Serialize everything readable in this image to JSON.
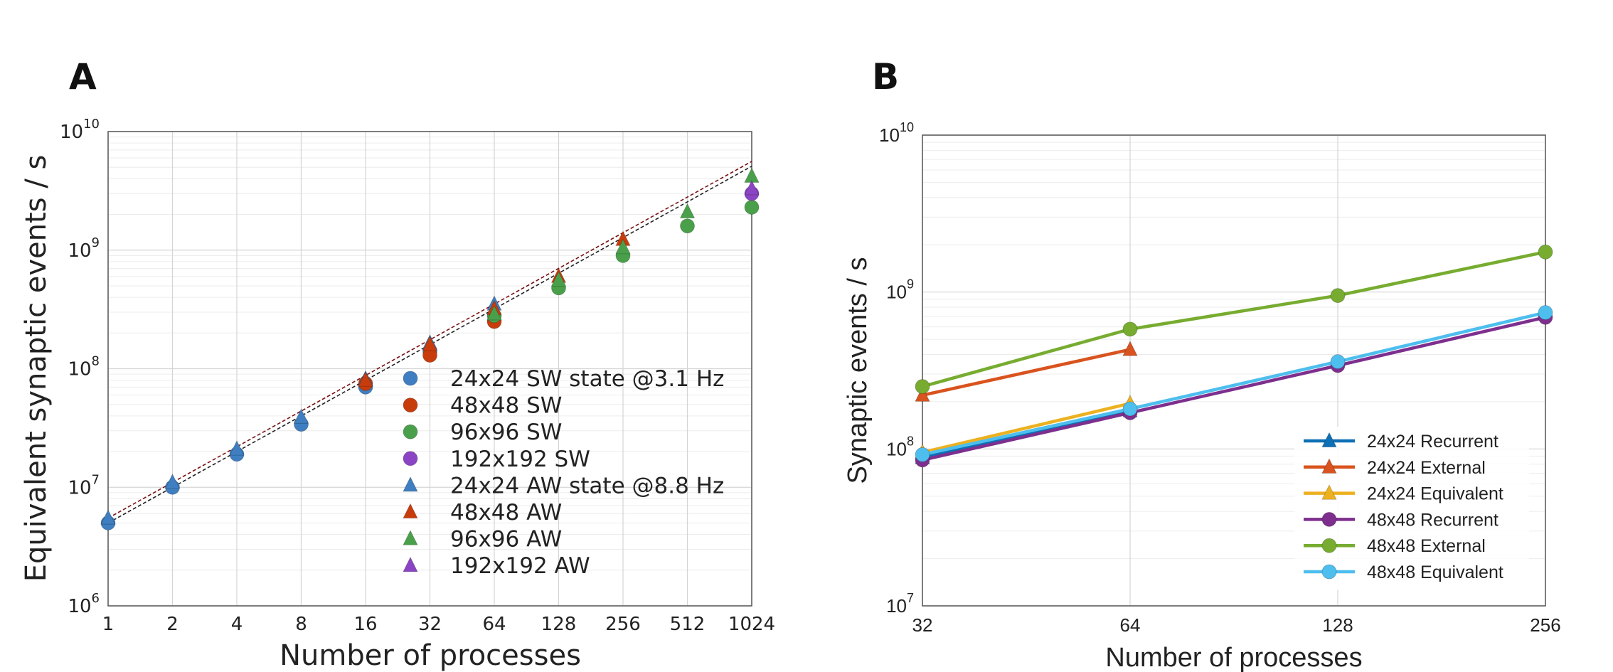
{
  "chart_data": [
    {
      "panel": "A",
      "type": "scatter",
      "xscale": "log2",
      "yscale": "log",
      "xlabel": "Number of processes",
      "ylabel": "Equivalent synaptic events / s",
      "xlim": [
        1,
        1024
      ],
      "ylim": [
        1000000,
        10000000000
      ],
      "xticks": [
        "1",
        "2",
        "4",
        "8",
        "16",
        "32",
        "64",
        "128",
        "256",
        "512",
        "1024"
      ],
      "ytick_base": "10",
      "ytick_exponents": [
        "6",
        "7",
        "8",
        "9",
        "10"
      ],
      "grid": true,
      "legend_position": "inside, lower-right of center",
      "series": [
        {
          "name": "24x24 SW state @3.1 Hz",
          "marker": "circle",
          "color": "#3f7fc1",
          "x": [
            1,
            2,
            4,
            8,
            16,
            32
          ],
          "y": [
            5000000,
            10000000,
            19000000,
            34000000,
            70000000,
            140000000
          ]
        },
        {
          "name": "48x48 SW",
          "marker": "circle",
          "color": "#c83c0c",
          "x": [
            16,
            32,
            64
          ],
          "y": [
            75000000,
            130000000,
            250000000
          ]
        },
        {
          "name": "96x96 SW",
          "marker": "circle",
          "color": "#4aa04a",
          "x": [
            64,
            128,
            256,
            512,
            1024
          ],
          "y": [
            280000000,
            480000000,
            900000000,
            1600000000,
            2300000000
          ]
        },
        {
          "name": "192x192 SW",
          "marker": "circle",
          "color": "#8b45c4",
          "x": [
            1024
          ],
          "y": [
            3000000000
          ]
        },
        {
          "name": "24x24 AW state @8.8 Hz",
          "marker": "triangle",
          "color": "#3f7fc1",
          "x": [
            1,
            2,
            4,
            8,
            16,
            32,
            64
          ],
          "y": [
            5500000,
            11000000,
            21000000,
            39000000,
            82000000,
            165000000,
            350000000
          ]
        },
        {
          "name": "48x48 AW",
          "marker": "triangle",
          "color": "#c83c0c",
          "x": [
            16,
            32,
            64,
            128,
            256
          ],
          "y": [
            80000000,
            160000000,
            320000000,
            600000000,
            1230000000
          ]
        },
        {
          "name": "96x96 AW",
          "marker": "triangle",
          "color": "#4aa04a",
          "x": [
            64,
            128,
            256,
            512,
            1024
          ],
          "y": [
            290000000,
            560000000,
            1050000000,
            2100000000,
            4200000000
          ]
        },
        {
          "name": "192x192 AW",
          "marker": "triangle",
          "color": "#8b45c4",
          "x": [
            1024
          ],
          "y": [
            3300000000
          ]
        }
      ],
      "reference_lines": [
        {
          "color": "#7a1010",
          "x": [
            1,
            1024
          ],
          "y": [
            5500000,
            5600000000
          ]
        },
        {
          "color": "#222222",
          "x": [
            1,
            1024
          ],
          "y": [
            5000000,
            5100000000
          ]
        }
      ]
    },
    {
      "panel": "B",
      "type": "line",
      "xscale": "log2",
      "yscale": "log",
      "xlabel": "Number of processes",
      "ylabel": "Synaptic events / s",
      "xlim": [
        32,
        256
      ],
      "ylim": [
        10000000,
        10000000000
      ],
      "xticks": [
        "32",
        "64",
        "128",
        "256"
      ],
      "ytick_base": "10",
      "ytick_exponents": [
        "7",
        "8",
        "9",
        "10"
      ],
      "grid": true,
      "legend_position": "lower-right",
      "series": [
        {
          "name": "24x24 Recurrent",
          "marker": "triangle",
          "color": "#0d6fb5",
          "x": [
            32,
            64
          ],
          "y": [
            88000000,
            175000000
          ]
        },
        {
          "name": "24x24 External",
          "marker": "triangle",
          "color": "#d9531e",
          "x": [
            32,
            64
          ],
          "y": [
            220000000,
            430000000
          ]
        },
        {
          "name": "24x24 Equivalent",
          "marker": "triangle",
          "color": "#edb120",
          "x": [
            32,
            64
          ],
          "y": [
            95000000,
            195000000
          ]
        },
        {
          "name": "48x48 Recurrent",
          "marker": "circle",
          "color": "#7e2f8e",
          "x": [
            32,
            64,
            128,
            256
          ],
          "y": [
            85000000,
            170000000,
            340000000,
            690000000
          ]
        },
        {
          "name": "48x48 External",
          "marker": "circle",
          "color": "#77ac30",
          "x": [
            32,
            64,
            128,
            256
          ],
          "y": [
            250000000,
            580000000,
            950000000,
            1800000000
          ]
        },
        {
          "name": "48x48 Equivalent",
          "marker": "circle",
          "color": "#4dbeee",
          "x": [
            32,
            64,
            128,
            256
          ],
          "y": [
            92000000,
            180000000,
            360000000,
            740000000
          ]
        }
      ]
    }
  ],
  "panels": {
    "a_label": "A",
    "b_label": "B"
  },
  "colors": {
    "axis": "#555555",
    "grid_major": "#d4d4d4",
    "grid_minor": "#ececec"
  }
}
